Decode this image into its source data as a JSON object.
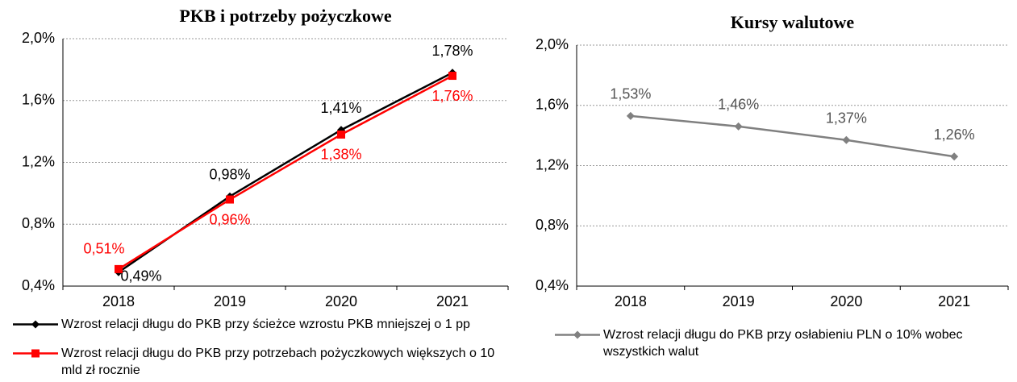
{
  "chart_data": [
    {
      "type": "line",
      "title": "PKB i potrzeby pożyczkowe",
      "categories": [
        "2018",
        "2019",
        "2020",
        "2021"
      ],
      "series": [
        {
          "name": "Wzrost relacji długu do PKB przy ścieżce wzrostu PKB mniejszej o 1 pp",
          "color": "#000000",
          "marker": "diamond",
          "values": [
            0.49,
            0.98,
            1.41,
            1.78
          ],
          "value_labels": [
            "0,49%",
            "0,98%",
            "1,41%",
            "1,78%"
          ]
        },
        {
          "name": "Wzrost relacji długu do PKB przy potrzebach pożyczkowych większych o 10 mld zł rocznie",
          "color": "#ff0000",
          "marker": "square",
          "values": [
            0.51,
            0.96,
            1.38,
            1.76
          ],
          "value_labels": [
            "0,51%",
            "0,96%",
            "1,38%",
            "1,76%"
          ]
        }
      ],
      "ylim": [
        0.4,
        2.0
      ],
      "yticks": [
        {
          "value": 0.4,
          "label": "0,4%"
        },
        {
          "value": 0.8,
          "label": "0,8%"
        },
        {
          "value": 1.2,
          "label": "1,2%"
        },
        {
          "value": 1.6,
          "label": "1,6%"
        },
        {
          "value": 2.0,
          "label": "2,0%"
        }
      ],
      "grid": true
    },
    {
      "type": "line",
      "title": "Kursy walutowe",
      "categories": [
        "2018",
        "2019",
        "2020",
        "2021"
      ],
      "series": [
        {
          "name": "Wzrost relacji długu do PKB przy osłabieniu PLN o 10% wobec wszystkich walut",
          "color": "#808080",
          "marker": "diamond",
          "values": [
            1.53,
            1.46,
            1.37,
            1.26
          ],
          "value_labels": [
            "1,53%",
            "1,46%",
            "1,37%",
            "1,26%"
          ]
        }
      ],
      "ylim": [
        0.4,
        2.0
      ],
      "yticks": [
        {
          "value": 0.4,
          "label": "0,4%"
        },
        {
          "value": 0.8,
          "label": "0,8%"
        },
        {
          "value": 1.2,
          "label": "1,2%"
        },
        {
          "value": 1.6,
          "label": "1,6%"
        },
        {
          "value": 2.0,
          "label": "2,0%"
        }
      ],
      "grid": true
    }
  ]
}
